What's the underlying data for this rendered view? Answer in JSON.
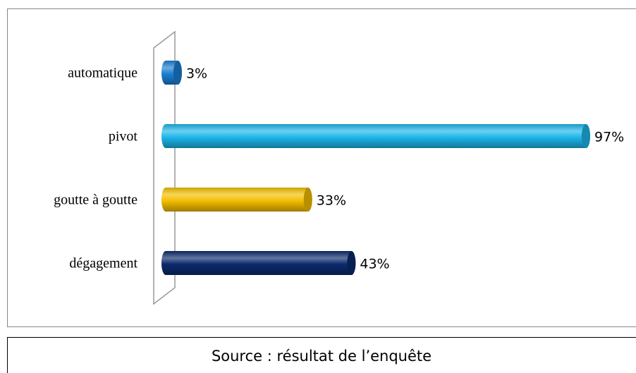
{
  "chart_data": {
    "type": "bar",
    "orientation": "horizontal",
    "categories": [
      "automatique",
      "pivot",
      "goutte à goutte",
      "dégagement"
    ],
    "values": [
      3,
      97,
      33,
      43
    ],
    "value_labels": [
      "3%",
      "97%",
      "33%",
      "43%"
    ],
    "colors": [
      "#1b7fd1",
      "#1db6ea",
      "#f4be00",
      "#0b2a6c"
    ],
    "source": "Source : résultat de l’enquête"
  }
}
